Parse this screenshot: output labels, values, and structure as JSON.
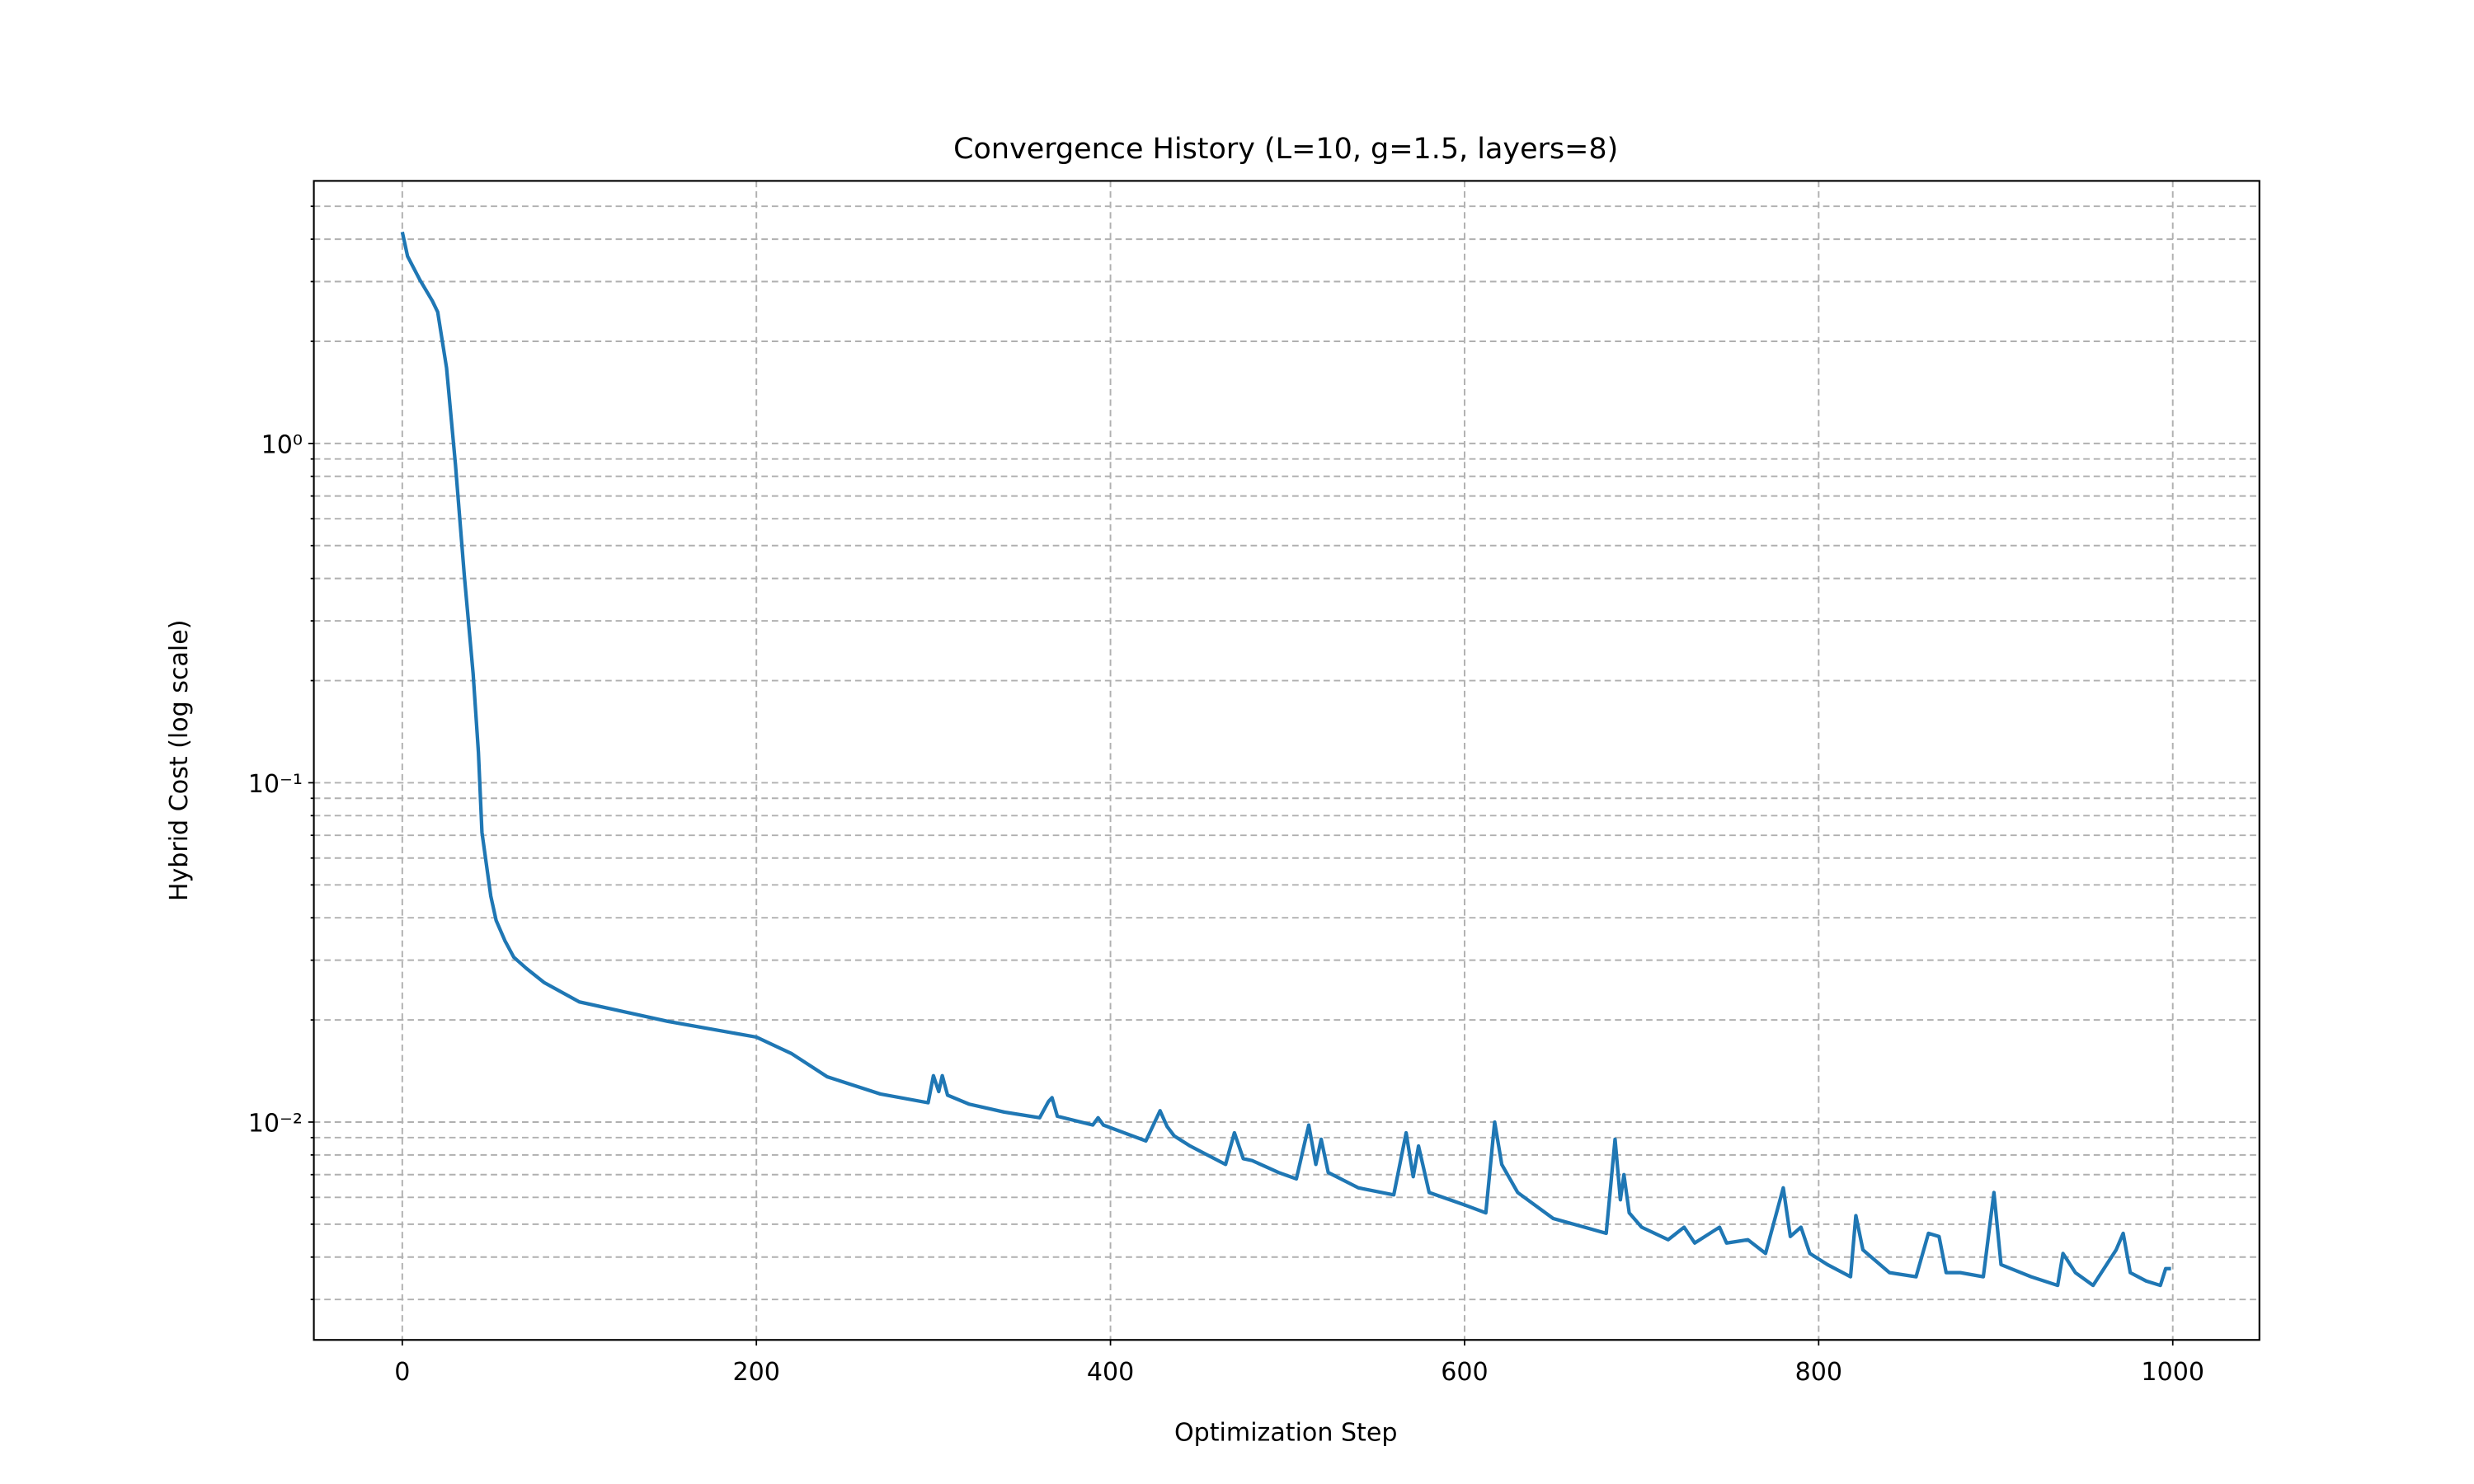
{
  "chart_data": {
    "type": "line",
    "title": "Convergence History (L=10, g=1.5, layers=8)",
    "x_label": "Optimization Step",
    "y_label": "Hybrid Cost (log scale)",
    "y_scale": "log",
    "grid": true,
    "xlim": [
      -49.95,
      1048.95
    ],
    "xticks": [
      0,
      200,
      400,
      600,
      800,
      1000
    ],
    "ylim": [
      0.00228,
      5.94
    ],
    "yticks": [
      {
        "value": 0.01,
        "label": "10⁻²"
      },
      {
        "value": 0.1,
        "label": "10⁻¹"
      },
      {
        "value": 1,
        "label": "10⁰"
      }
    ],
    "yminorticks": [
      0.003,
      0.004,
      0.005,
      0.006,
      0.007,
      0.008,
      0.009,
      0.02,
      0.03,
      0.04,
      0.05,
      0.06,
      0.07,
      0.08,
      0.09,
      0.2,
      0.3,
      0.4,
      0.5,
      0.6,
      0.7,
      0.8,
      0.9,
      2,
      3,
      4,
      5
    ],
    "series": [
      {
        "color": "#1f77b4",
        "x": [
          0,
          3,
          10,
          17,
          20,
          25,
          30,
          35,
          40,
          43,
          45,
          50,
          53,
          58,
          63,
          70,
          80,
          100,
          150,
          200,
          220,
          240,
          270,
          297,
          300,
          303,
          305,
          308,
          320,
          340,
          360,
          365,
          367,
          370,
          390,
          393,
          396,
          420,
          428,
          432,
          436,
          445,
          465,
          470,
          475,
          480,
          495,
          505,
          512,
          516,
          519,
          523,
          540,
          560,
          567,
          571,
          574,
          580,
          600,
          612,
          617,
          621,
          630,
          650,
          680,
          685,
          688,
          690,
          693,
          700,
          715,
          724,
          730,
          744,
          748,
          760,
          770,
          780,
          784,
          790,
          795,
          805,
          818,
          821,
          825,
          840,
          855,
          862,
          868,
          872,
          880,
          893,
          899,
          903,
          920,
          935,
          938,
          945,
          955,
          968,
          972,
          976,
          985,
          993,
          996,
          999
        ],
        "values": [
          4.2,
          3.56,
          3.03,
          2.63,
          2.44,
          1.67,
          0.87,
          0.41,
          0.21,
          0.123,
          0.0714,
          0.0463,
          0.0393,
          0.0342,
          0.0306,
          0.0284,
          0.0258,
          0.0226,
          0.0198,
          0.0178,
          0.0159,
          0.0136,
          0.0121,
          0.0114,
          0.0137,
          0.0123,
          0.0137,
          0.012,
          0.0113,
          0.0107,
          0.0103,
          0.0115,
          0.0118,
          0.0104,
          0.0098,
          0.0103,
          0.0098,
          0.0088,
          0.0108,
          0.0097,
          0.0091,
          0.0085,
          0.0075,
          0.0093,
          0.0078,
          0.0077,
          0.0071,
          0.0068,
          0.0098,
          0.0075,
          0.0089,
          0.0071,
          0.0064,
          0.0061,
          0.0093,
          0.0069,
          0.0085,
          0.0062,
          0.0057,
          0.0054,
          0.01,
          0.0075,
          0.0062,
          0.0052,
          0.0047,
          0.0089,
          0.0059,
          0.007,
          0.0054,
          0.0049,
          0.0045,
          0.0049,
          0.0044,
          0.0049,
          0.0044,
          0.0045,
          0.0041,
          0.0064,
          0.0046,
          0.0049,
          0.0041,
          0.0038,
          0.0035,
          0.0053,
          0.0042,
          0.0036,
          0.0035,
          0.0047,
          0.0046,
          0.0036,
          0.0036,
          0.0035,
          0.0062,
          0.0038,
          0.0035,
          0.0033,
          0.0041,
          0.0036,
          0.0033,
          0.0042,
          0.0047,
          0.0036,
          0.0034,
          0.0033,
          0.0037,
          0.0037
        ]
      }
    ]
  }
}
